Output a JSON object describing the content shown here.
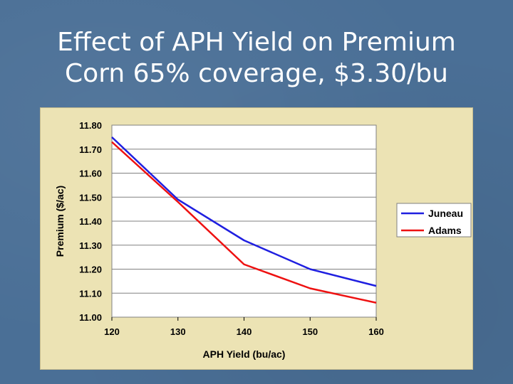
{
  "slide": {
    "title_line1": "Effect of APH Yield on Premium",
    "title_line2": "Corn 65% coverage, $3.30/bu"
  },
  "chart_data": {
    "type": "line",
    "title": "",
    "xlabel": "APH Yield (bu/ac)",
    "ylabel": "Premium ($/ac)",
    "x": [
      120,
      130,
      140,
      150,
      160
    ],
    "xticks": [
      "120",
      "130",
      "140",
      "150",
      "160"
    ],
    "yticks": [
      "11.00",
      "11.10",
      "11.20",
      "11.30",
      "11.40",
      "11.50",
      "11.60",
      "11.70",
      "11.80"
    ],
    "xlim": [
      120,
      160
    ],
    "ylim": [
      11.0,
      11.8
    ],
    "grid": "horizontal",
    "legend_position": "right",
    "series": [
      {
        "name": "Juneau",
        "color": "#1f1fe0",
        "values": [
          11.75,
          11.49,
          11.32,
          11.2,
          11.13
        ]
      },
      {
        "name": "Adams",
        "color": "#ee1111",
        "values": [
          11.73,
          11.48,
          11.22,
          11.12,
          11.06
        ]
      }
    ]
  }
}
